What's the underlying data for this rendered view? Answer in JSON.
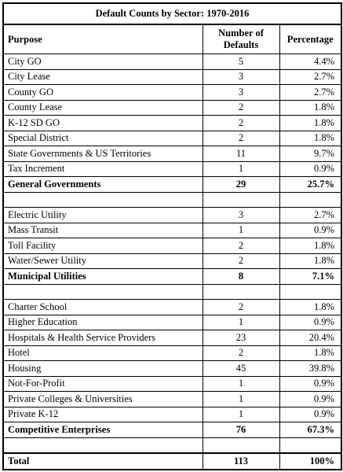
{
  "table": {
    "title": "Default Counts by Sector: 1970-2016",
    "header": [
      "Purpose",
      "Number of Defaults",
      "Percentage"
    ],
    "sections": [
      {
        "rows": [
          [
            "City GO",
            5,
            "4.4%"
          ],
          [
            "City Lease",
            3,
            "2.7%"
          ],
          [
            "County GO",
            3,
            "2.7%"
          ],
          [
            "County Lease",
            2,
            "1.8%"
          ],
          [
            "K-12 SD GO",
            2,
            "1.8%"
          ],
          [
            "Special District",
            2,
            "1.8%"
          ],
          [
            "State Governments & US Territories",
            11,
            "9.7%"
          ],
          [
            "Tax Increment",
            1,
            "0.9%"
          ]
        ],
        "subtotal": [
          "General Governments",
          29,
          "25.7%"
        ]
      },
      {
        "rows": [
          [
            "Electric Utility",
            3,
            "2.7%"
          ],
          [
            "Mass Transit",
            1,
            "0.9%"
          ],
          [
            "Toll Facility",
            2,
            "1.8%"
          ],
          [
            "Water/Sewer Utility",
            2,
            "1.8%"
          ]
        ],
        "subtotal": [
          "Municipal Utilities",
          8,
          "7.1%"
        ]
      },
      {
        "rows": [
          [
            "Charter School",
            2,
            "1.8%"
          ],
          [
            "Higher Education",
            1,
            "0.9%"
          ],
          [
            "Hospitals & Health Service Providers",
            23,
            "20.4%"
          ],
          [
            "Hotel",
            2,
            "1.8%"
          ],
          [
            "Housing",
            45,
            "39.8%"
          ],
          [
            "Not-For-Profit",
            1,
            "0.9%"
          ],
          [
            "Private Colleges & Universities",
            1,
            "0.9%"
          ],
          [
            "Private K-12",
            1,
            "0.9%"
          ]
        ],
        "subtotal": [
          "Competitive Enterprises",
          76,
          "67.3%"
        ]
      }
    ],
    "total": [
      "Total",
      113,
      "100%"
    ]
  }
}
